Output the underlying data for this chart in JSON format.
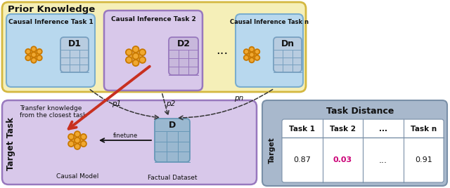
{
  "title": "Prior Knowledge",
  "prior_bg": "#f5efb8",
  "prior_edge": "#d4b840",
  "task1_bg": "#b8d8ee",
  "task1_edge": "#7aadce",
  "task2_bg": "#d8c8ea",
  "task2_edge": "#9878be",
  "taskn_bg": "#b8d8ee",
  "taskn_edge": "#7aadce",
  "target_bg": "#d8c8ea",
  "target_edge": "#9878be",
  "table_bg": "#a8b8cc",
  "table_edge": "#7a90a8",
  "table_white": "#ffffff",
  "node_fill": "#f0a830",
  "node_edge": "#c87800",
  "dataset_bg": "#b8cce0",
  "dataset_bg2": "#c8b8dc",
  "dataset_edge": "#78a0c0",
  "d_target_bg": "#9ab8d0",
  "red_color": "#c83020",
  "text_color": "#111111",
  "highlight_color": "#cc0077",
  "table_title": "Task Distance",
  "col_headers": [
    "Task 1",
    "Task 2",
    "...",
    "Task n"
  ],
  "values": [
    "0.87",
    "0.03",
    "...",
    "0.91"
  ],
  "highlight_col": 1
}
